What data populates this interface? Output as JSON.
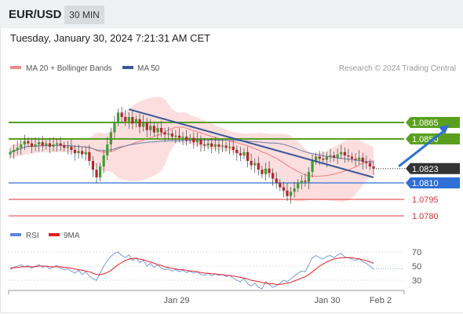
{
  "header": {
    "symbol": "EUR/USD",
    "interval": "30 MIN",
    "datetime": "Tuesday, January 30, 2024 7:21:31 AM CET"
  },
  "chart_data": [
    {
      "type": "candlestick",
      "legend": [
        {
          "name": "MA 20 + Bollinger Bands",
          "color": "#f08a8a"
        },
        {
          "name": "MA 50",
          "color": "#3a5998"
        }
      ],
      "credit": "Research © 2024 Trading Central",
      "ylim": [
        1.0775,
        1.0905
      ],
      "x_ticks": [
        "Jan 29",
        "Jan 30",
        "Feb 2"
      ],
      "levels": [
        {
          "value": 1.0865,
          "label": "1.0865",
          "color": "#5aa01e",
          "style": "box"
        },
        {
          "value": 1.085,
          "label": "1.0850",
          "color": "#5aa01e",
          "style": "box"
        },
        {
          "value": 1.0823,
          "label": "1.0823",
          "color": "#333333",
          "style": "box-current"
        },
        {
          "value": 1.081,
          "label": "1.0810",
          "color": "#2f6fd6",
          "style": "box"
        },
        {
          "value": 1.0795,
          "label": "1.0795",
          "color": "#e03535",
          "style": "text"
        },
        {
          "value": 1.078,
          "label": "1.0780",
          "color": "#e03535",
          "style": "text"
        }
      ],
      "closes": [
        1.0838,
        1.084,
        1.0842,
        1.0845,
        1.0848,
        1.0846,
        1.0843,
        1.0845,
        1.0847,
        1.0844,
        1.0846,
        1.0843,
        1.0845,
        1.0846,
        1.0844,
        1.0842,
        1.0843,
        1.084,
        1.0837,
        1.0839,
        1.0836,
        1.0838,
        1.083,
        1.0822,
        1.0815,
        1.0825,
        1.0835,
        1.0845,
        1.0856,
        1.0865,
        1.0874,
        1.087,
        1.0866,
        1.087,
        1.0864,
        1.0868,
        1.0861,
        1.0865,
        1.0858,
        1.0862,
        1.0856,
        1.086,
        1.0856,
        1.0854,
        1.0855,
        1.0852,
        1.0853,
        1.0851,
        1.0852,
        1.0849,
        1.0851,
        1.0847,
        1.0849,
        1.0845,
        1.0844,
        1.0846,
        1.0843,
        1.0845,
        1.0843,
        1.0844,
        1.0842,
        1.0843,
        1.084,
        1.0837,
        1.0835,
        1.0838,
        1.083,
        1.0826,
        1.0828,
        1.0822,
        1.0818,
        1.0823,
        1.0819,
        1.0814,
        1.081,
        1.0806,
        1.0803,
        1.0798,
        1.0802,
        1.0805,
        1.081,
        1.0812,
        1.0811,
        1.082,
        1.083,
        1.0834,
        1.0832,
        1.0831,
        1.0834,
        1.0835,
        1.0833,
        1.0836,
        1.0838,
        1.0835,
        1.0834,
        1.0832,
        1.0831,
        1.0833,
        1.0829,
        1.0828,
        1.0825,
        1.0823
      ],
      "trendlines": [
        {
          "from": [
            33,
            1.0877
          ],
          "to": [
            101,
            1.0815
          ],
          "color": "#3a5998"
        }
      ],
      "arrow": {
        "from": [
          108,
          1.0825
        ],
        "to": [
          122,
          1.0863
        ],
        "color": "#2f6fd6"
      }
    },
    {
      "type": "line",
      "legend": [
        {
          "name": "RSI",
          "color": "#5b86e5"
        },
        {
          "name": "9MA",
          "color": "#e02020"
        }
      ],
      "ylim": [
        20,
        80
      ],
      "y_ticks": [
        "70",
        "50",
        "30"
      ],
      "series": [
        {
          "name": "RSI",
          "values": [
            45,
            48,
            50,
            52,
            49,
            51,
            47,
            50,
            52,
            48,
            50,
            46,
            49,
            51,
            47,
            45,
            46,
            43,
            40,
            44,
            38,
            42,
            36,
            32,
            30,
            40,
            50,
            58,
            64,
            68,
            70,
            65,
            62,
            66,
            58,
            62,
            55,
            58,
            50,
            54,
            48,
            52,
            47,
            45,
            46,
            43,
            45,
            42,
            44,
            41,
            43,
            40,
            42,
            38,
            37,
            40,
            36,
            39,
            37,
            38,
            35,
            37,
            33,
            30,
            28,
            33,
            25,
            22,
            26,
            20,
            18,
            28,
            24,
            20,
            22,
            26,
            30,
            28,
            32,
            36,
            40,
            43,
            42,
            52,
            62,
            65,
            62,
            60,
            64,
            65,
            62,
            66,
            68,
            63,
            62,
            60,
            58,
            61,
            56,
            54,
            50,
            46
          ]
        },
        {
          "name": "9MA",
          "values": [
            47,
            48,
            48,
            49,
            49,
            49,
            49,
            49,
            50,
            50,
            50,
            49,
            49,
            49,
            49,
            48,
            48,
            47,
            46,
            45,
            44,
            43,
            42,
            40,
            38,
            38,
            39,
            41,
            44,
            48,
            52,
            55,
            58,
            60,
            61,
            61,
            60,
            59,
            57,
            56,
            54,
            52,
            51,
            49,
            48,
            47,
            46,
            45,
            45,
            44,
            43,
            43,
            42,
            41,
            40,
            40,
            39,
            39,
            38,
            38,
            37,
            37,
            36,
            35,
            34,
            33,
            32,
            30,
            29,
            28,
            27,
            26,
            25,
            25,
            24,
            24,
            25,
            26,
            27,
            29,
            31,
            33,
            35,
            38,
            42,
            46,
            50,
            53,
            56,
            58,
            60,
            61,
            62,
            62,
            62,
            62,
            61,
            60,
            59,
            58,
            56,
            54
          ]
        }
      ]
    }
  ]
}
